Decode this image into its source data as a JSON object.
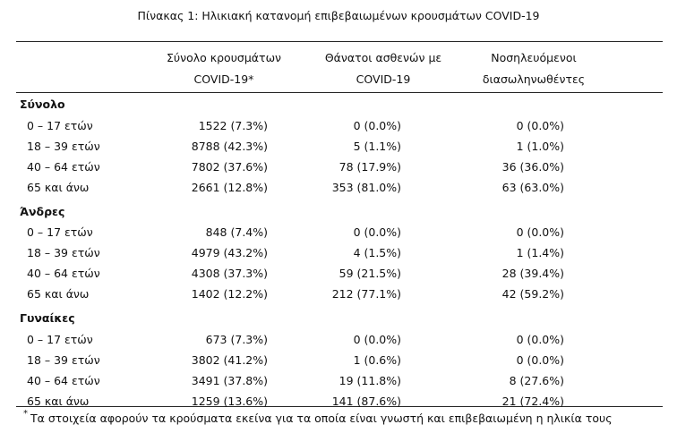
{
  "title": "Πίνακας 1: Ηλικιακή κατανομή επιβεβαιωμένων κρουσμάτων COVID-19",
  "table": {
    "columns": [
      [
        "Σύνολο κρουσμάτων",
        "COVID-19*"
      ],
      [
        "Θάνατοι ασθενών με",
        "COVID-19"
      ],
      [
        "Νοσηλευόμενοι",
        "διασωληνωθέντες"
      ]
    ],
    "sections": [
      {
        "name": "Σύνολο",
        "rows": [
          [
            "0 – 17 ετών",
            "1522 (7.3%)",
            "0 (0.0%)",
            "0 (0.0%)"
          ],
          [
            "18 – 39 ετών",
            "8788 (42.3%)",
            "5 (1.1%)",
            "1 (1.0%)"
          ],
          [
            "40 – 64 ετών",
            "7802 (37.6%)",
            "78 (17.9%)",
            "36 (36.0%)"
          ],
          [
            "65 και άνω",
            "2661 (12.8%)",
            "353 (81.0%)",
            "63 (63.0%)"
          ]
        ]
      },
      {
        "name": "Άνδρες",
        "rows": [
          [
            "0 – 17 ετών",
            "848 (7.4%)",
            "0 (0.0%)",
            "0 (0.0%)"
          ],
          [
            "18 – 39 ετών",
            "4979 (43.2%)",
            "4 (1.5%)",
            "1 (1.4%)"
          ],
          [
            "40 – 64 ετών",
            "4308 (37.3%)",
            "59 (21.5%)",
            "28 (39.4%)"
          ],
          [
            "65 και άνω",
            "1402 (12.2%)",
            "212 (77.1%)",
            "42 (59.2%)"
          ]
        ]
      },
      {
        "name": "Γυναίκες",
        "rows": [
          [
            "0 – 17 ετών",
            "673 (7.3%)",
            "0 (0.0%)",
            "0 (0.0%)"
          ],
          [
            "18 – 39 ετών",
            "3802 (41.2%)",
            "1 (0.6%)",
            "0 (0.0%)"
          ],
          [
            "40 – 64 ετών",
            "3491 (37.8%)",
            "19 (11.8%)",
            "8 (27.6%)"
          ],
          [
            "65 και άνω",
            "1259 (13.6%)",
            "141 (87.6%)",
            "21 (72.4%)"
          ]
        ]
      }
    ]
  },
  "footnote": {
    "mark": "*",
    "text": "Τα στοιχεία αφορούν τα κρούσματα εκείνα για τα οποία είναι γνωστή και επιβεβαιωμένη η ηλικία τους"
  }
}
